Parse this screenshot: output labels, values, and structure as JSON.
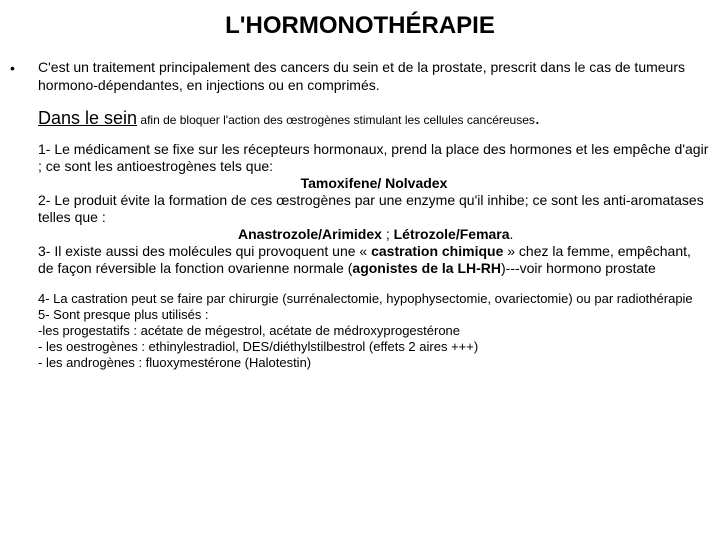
{
  "colors": {
    "background": "#ffffff",
    "text": "#000000"
  },
  "title": "L'HORMONOTHÉRAPIE",
  "bullet": "•",
  "intro": "C'est un traitement principalement des cancers du sein et de la prostate, prescrit dans le cas de tumeurs hormono-dépendantes, en injections ou en comprimés.",
  "section": {
    "label": "Dans le sein",
    "after": " afin de bloquer l'action des œstrogènes stimulant les cellules cancéreuses",
    "period": "."
  },
  "body": {
    "p1a": " 1-  Le médicament se fixe sur les récepteurs hormonaux, prend la place des hormones et les empêche d'agir ; ce sont les antioestrogènes tels que:",
    "p1_drug": "Tamoxifene/ Nolvadex",
    "p2a": " 2- Le produit évite la formation de ces œstrogènes par une enzyme qu'il inhibe; ce sont les anti-aromatases telles que :",
    "p2_drug_a": "Anastrozole/Arimidex",
    "p2_sep": " ; ",
    "p2_drug_b": "Létrozole/Femara",
    "p2_end": ".",
    "p3_pre": " 3- Il existe aussi des molécules qui provoquent une « ",
    "p3_bold": "castration chimique",
    "p3_mid": " » chez la femme, empêchant, de façon réversible la fonction  ovarienne normale (",
    "p3_bold2": "agonistes de la LH-RH",
    "p3_post": ")---voir hormono prostate"
  },
  "footer": {
    "f4": " 4- La castration peut se faire par chirurgie (surrénalectomie, hypophysectomie, ovariectomie) ou par radiothérapie",
    "f5": "5- Sont presque plus utilisés :",
    "f5a": "  -les progestatifs : acétate de mégestrol, acétate de médroxyprogestérone",
    "f5b": " - les oestrogènes : ethinylestradiol, DES/diéthylstilbestrol (effets 2 aires +++)",
    "f5c": " - les androgènes : fluoxymestérone (Halotestin)"
  }
}
